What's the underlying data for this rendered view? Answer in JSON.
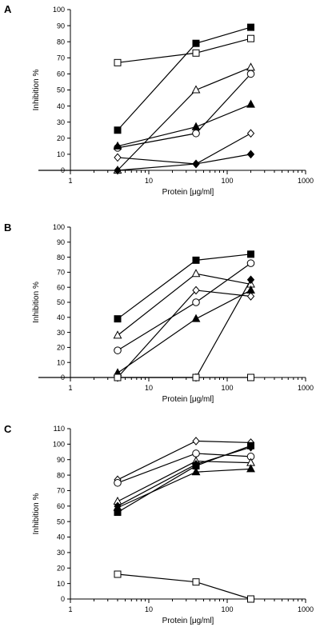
{
  "chart_data": [
    {
      "panel_label": "A",
      "type": "line",
      "xscale": "log",
      "xlim": [
        1,
        1000
      ],
      "ylim": [
        0,
        100
      ],
      "xticks": [
        1,
        10,
        100,
        1000
      ],
      "yticks": [
        0,
        10,
        20,
        30,
        40,
        50,
        60,
        70,
        80,
        90,
        100
      ],
      "xlabel": "Protein [μg/ml]",
      "ylabel": "Inhibition %",
      "series": [
        {
          "marker": "square-filled",
          "x": [
            4,
            40,
            200
          ],
          "y": [
            25,
            79,
            89
          ]
        },
        {
          "marker": "square-open",
          "x": [
            4,
            40,
            200
          ],
          "y": [
            67,
            73,
            82
          ]
        },
        {
          "marker": "triangle-open",
          "x": [
            4,
            40,
            200
          ],
          "y": [
            0,
            50,
            64
          ]
        },
        {
          "marker": "circle-open",
          "x": [
            4,
            40,
            200
          ],
          "y": [
            14,
            23,
            60
          ]
        },
        {
          "marker": "triangle-filled",
          "x": [
            4,
            40,
            200
          ],
          "y": [
            15,
            27,
            41
          ]
        },
        {
          "marker": "diamond-open",
          "x": [
            4,
            40,
            200
          ],
          "y": [
            8,
            4,
            23
          ]
        },
        {
          "marker": "diamond-filled",
          "x": [
            0.2,
            4,
            40,
            200
          ],
          "y": [
            0,
            0,
            4,
            10
          ]
        }
      ]
    },
    {
      "panel_label": "B",
      "type": "line",
      "xscale": "log",
      "xlim": [
        1,
        1000
      ],
      "ylim": [
        0,
        100
      ],
      "xticks": [
        1,
        10,
        100,
        1000
      ],
      "yticks": [
        0,
        10,
        20,
        30,
        40,
        50,
        60,
        70,
        80,
        90,
        100
      ],
      "xlabel": "Protein [μg/ml]",
      "ylabel": "Inhibition %",
      "series": [
        {
          "marker": "square-filled",
          "x": [
            4,
            40,
            200
          ],
          "y": [
            39,
            78,
            82
          ]
        },
        {
          "marker": "triangle-open",
          "x": [
            4,
            40,
            200
          ],
          "y": [
            28,
            69,
            62
          ]
        },
        {
          "marker": "circle-open",
          "x": [
            4,
            40,
            200
          ],
          "y": [
            18,
            50,
            76
          ]
        },
        {
          "marker": "diamond-open",
          "x": [
            4,
            40,
            200
          ],
          "y": [
            0,
            58,
            54
          ]
        },
        {
          "marker": "triangle-filled",
          "x": [
            4,
            40,
            200
          ],
          "y": [
            3,
            39,
            58
          ]
        },
        {
          "marker": "diamond-filled",
          "x": [
            4,
            40,
            200
          ],
          "y": [
            0,
            0,
            65
          ]
        },
        {
          "marker": "square-open",
          "x": [
            0.2,
            4,
            40,
            200
          ],
          "y": [
            0,
            0,
            0,
            0
          ]
        }
      ]
    },
    {
      "panel_label": "C",
      "type": "line",
      "xscale": "log",
      "xlim": [
        1,
        1000
      ],
      "ylim": [
        0,
        110
      ],
      "xticks": [
        1,
        10,
        100,
        1000
      ],
      "yticks": [
        0,
        10,
        20,
        30,
        40,
        50,
        60,
        70,
        80,
        90,
        100,
        110
      ],
      "xlabel": "Protein [μg/ml]",
      "ylabel": "Inhibition %",
      "series": [
        {
          "marker": "diamond-open",
          "x": [
            4,
            40,
            200
          ],
          "y": [
            77,
            102,
            101
          ]
        },
        {
          "marker": "circle-open",
          "x": [
            4,
            40,
            200
          ],
          "y": [
            75,
            94,
            92
          ]
        },
        {
          "marker": "triangle-open",
          "x": [
            4,
            40,
            200
          ],
          "y": [
            63,
            89,
            88
          ]
        },
        {
          "marker": "diamond-filled",
          "x": [
            4,
            40,
            200
          ],
          "y": [
            60,
            87,
            98
          ]
        },
        {
          "marker": "square-filled",
          "x": [
            4,
            40,
            200
          ],
          "y": [
            56,
            86,
            99
          ]
        },
        {
          "marker": "triangle-filled",
          "x": [
            4,
            40,
            200
          ],
          "y": [
            59,
            82,
            84
          ]
        },
        {
          "marker": "square-open",
          "x": [
            4,
            40,
            200
          ],
          "y": [
            16,
            11,
            0
          ]
        }
      ]
    }
  ]
}
